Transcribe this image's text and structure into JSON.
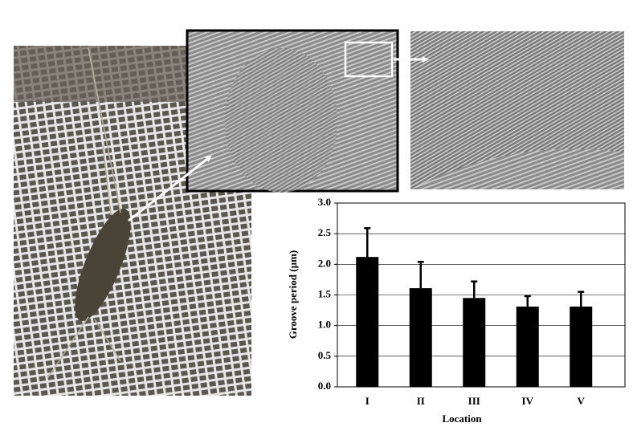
{
  "chart_data": {
    "type": "bar",
    "xlabel": "Location",
    "ylabel": "Groove period (µm)",
    "categories": [
      "I",
      "II",
      "III",
      "IV",
      "V"
    ],
    "values": [
      2.12,
      1.61,
      1.45,
      1.31,
      1.31
    ],
    "errors": [
      0.47,
      0.43,
      0.27,
      0.17,
      0.24
    ],
    "color": "#000000",
    "ylim": [
      0,
      3
    ],
    "yticks": [
      {
        "value": 0,
        "label": "0.0"
      },
      0.5,
      {
        "value": 1,
        "label": "1.0"
      },
      1.5,
      {
        "value": 2,
        "label": "2.0"
      },
      2.5,
      {
        "value": 3,
        "label": "3.0"
      }
    ],
    "grid": true
  }
}
